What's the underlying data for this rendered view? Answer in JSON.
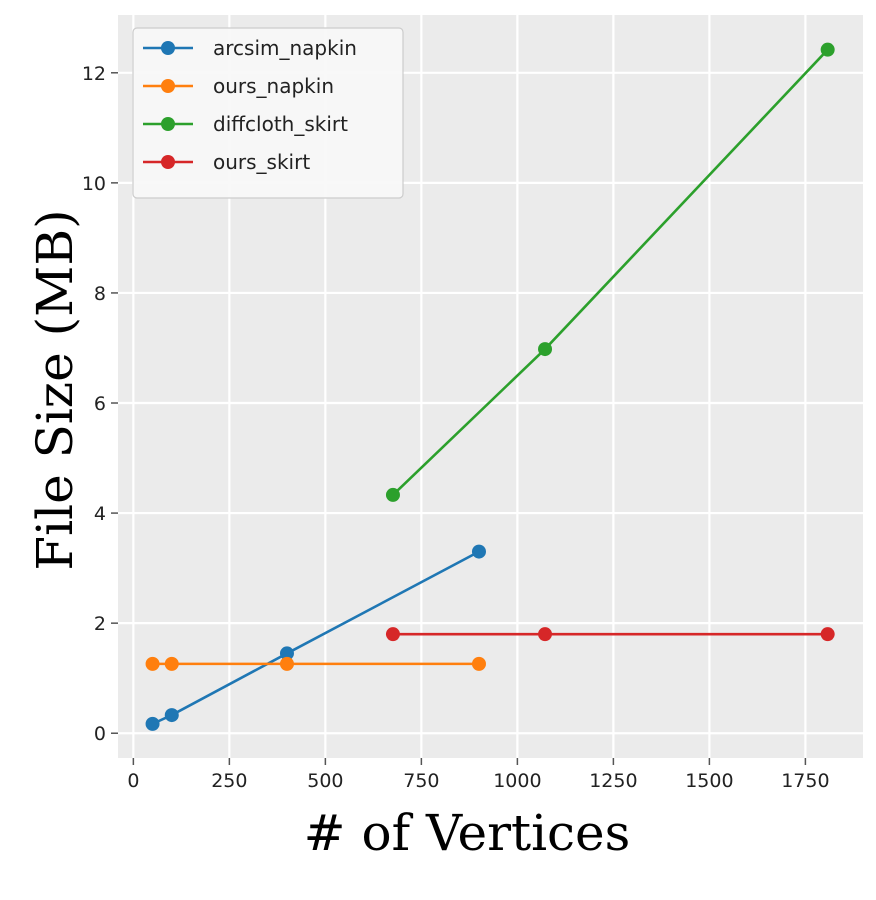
{
  "chart_data": {
    "type": "line",
    "title": "",
    "xlabel": "# of Vertices",
    "ylabel": "File Size (MB)",
    "xlim": [
      -40,
      1900
    ],
    "ylim": [
      -0.45,
      13.05
    ],
    "xticks": [
      0,
      250,
      500,
      750,
      1000,
      1250,
      1500,
      1750
    ],
    "yticks": [
      0,
      2,
      4,
      6,
      8,
      10,
      12
    ],
    "grid": true,
    "legend_position": "top-left",
    "background": "#ebebeb",
    "series": [
      {
        "name": "arcsim_napkin",
        "color": "#1f77b4",
        "x": [
          50,
          100,
          400,
          900
        ],
        "y": [
          0.17,
          0.33,
          1.45,
          3.3
        ]
      },
      {
        "name": "ours_napkin",
        "color": "#ff7f0e",
        "x": [
          50,
          100,
          400,
          900
        ],
        "y": [
          1.26,
          1.26,
          1.26,
          1.26
        ]
      },
      {
        "name": "diffcloth_skirt",
        "color": "#2ca02c",
        "x": [
          676,
          1072,
          1808
        ],
        "y": [
          4.33,
          6.98,
          12.42
        ]
      },
      {
        "name": "ours_skirt",
        "color": "#d62728",
        "x": [
          676,
          1072,
          1808
        ],
        "y": [
          1.8,
          1.8,
          1.8
        ]
      }
    ]
  }
}
